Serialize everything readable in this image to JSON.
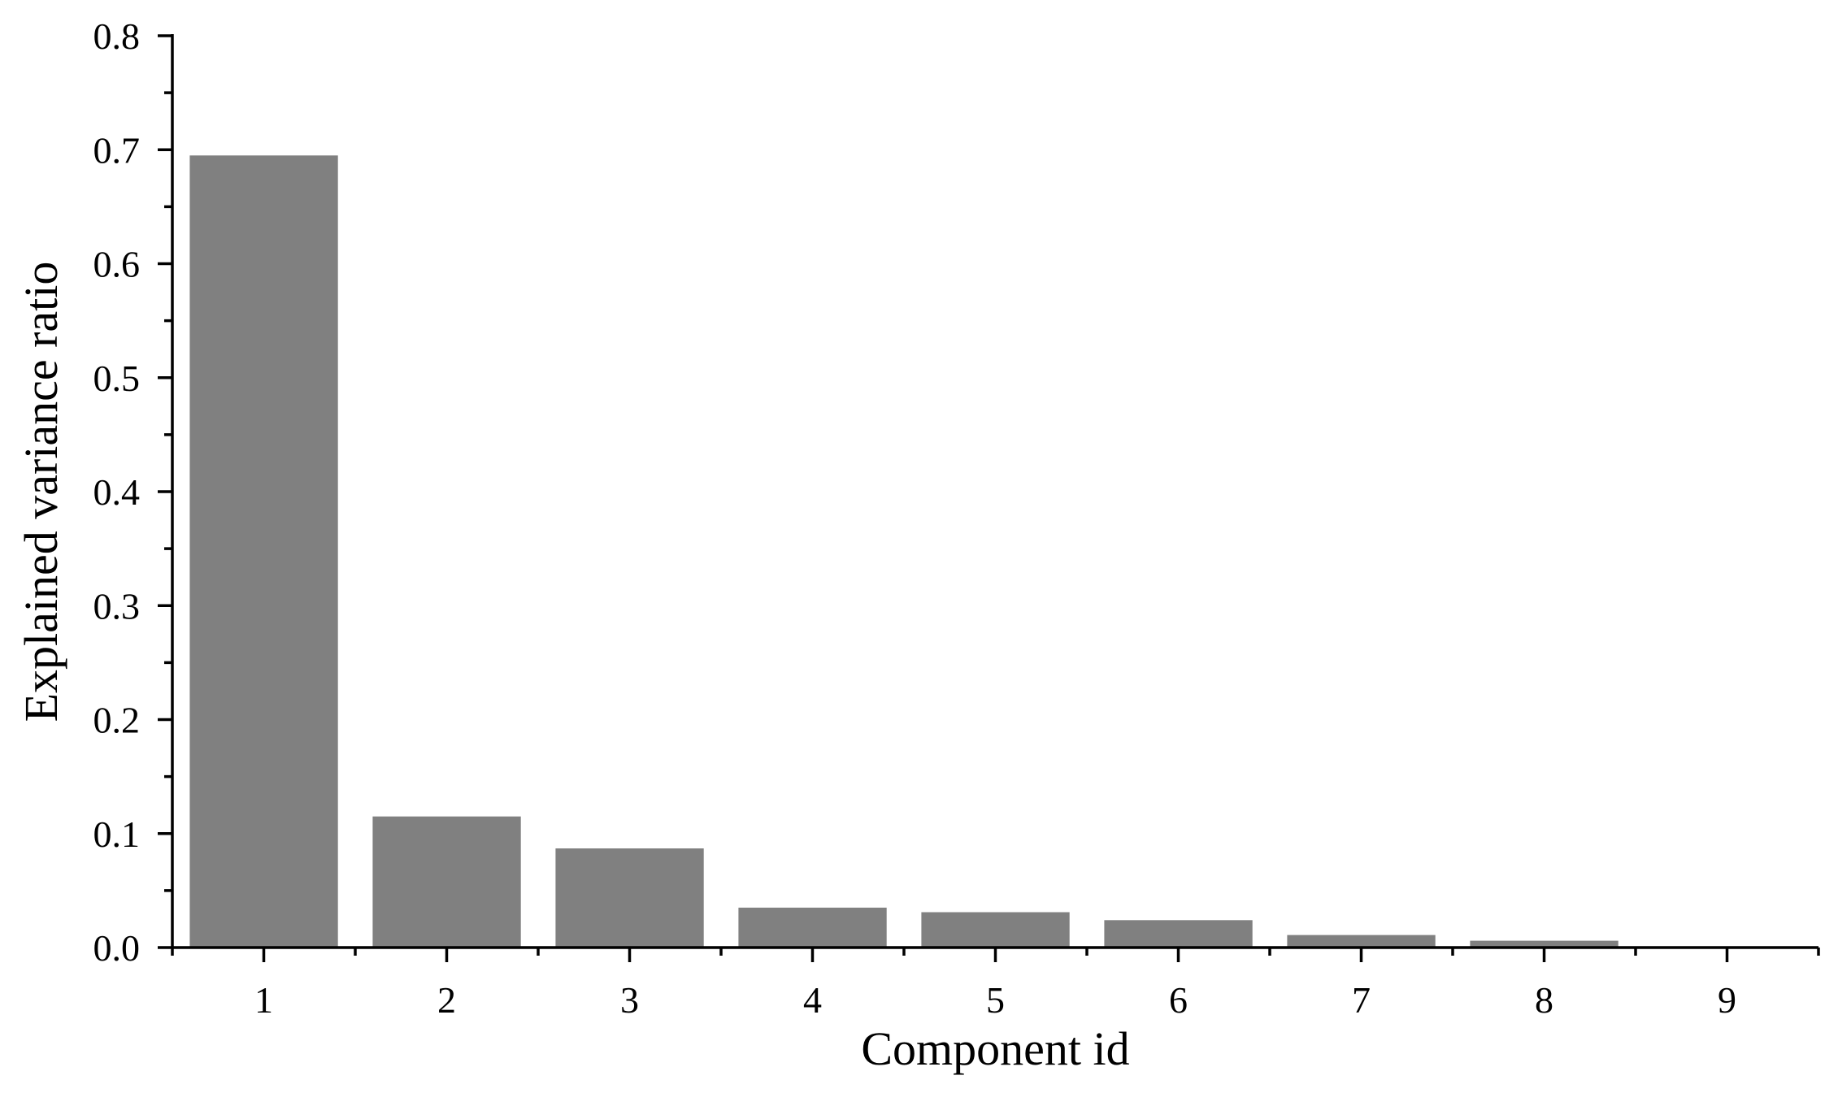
{
  "chart_data": {
    "type": "bar",
    "categories": [
      "1",
      "2",
      "3",
      "4",
      "5",
      "6",
      "7",
      "8",
      "9"
    ],
    "values": [
      0.695,
      0.115,
      0.087,
      0.035,
      0.031,
      0.024,
      0.011,
      0.006,
      0.001
    ],
    "title": "",
    "xlabel": "Component id",
    "ylabel": "Explained variance ratio",
    "ylim": [
      0,
      0.8
    ],
    "yticks": [
      "0.0",
      "0.1",
      "0.2",
      "0.3",
      "0.4",
      "0.5",
      "0.6",
      "0.7",
      "0.8"
    ],
    "grid": false,
    "legend": "none",
    "bar_color": "#808080",
    "axis_color": "#000000"
  }
}
